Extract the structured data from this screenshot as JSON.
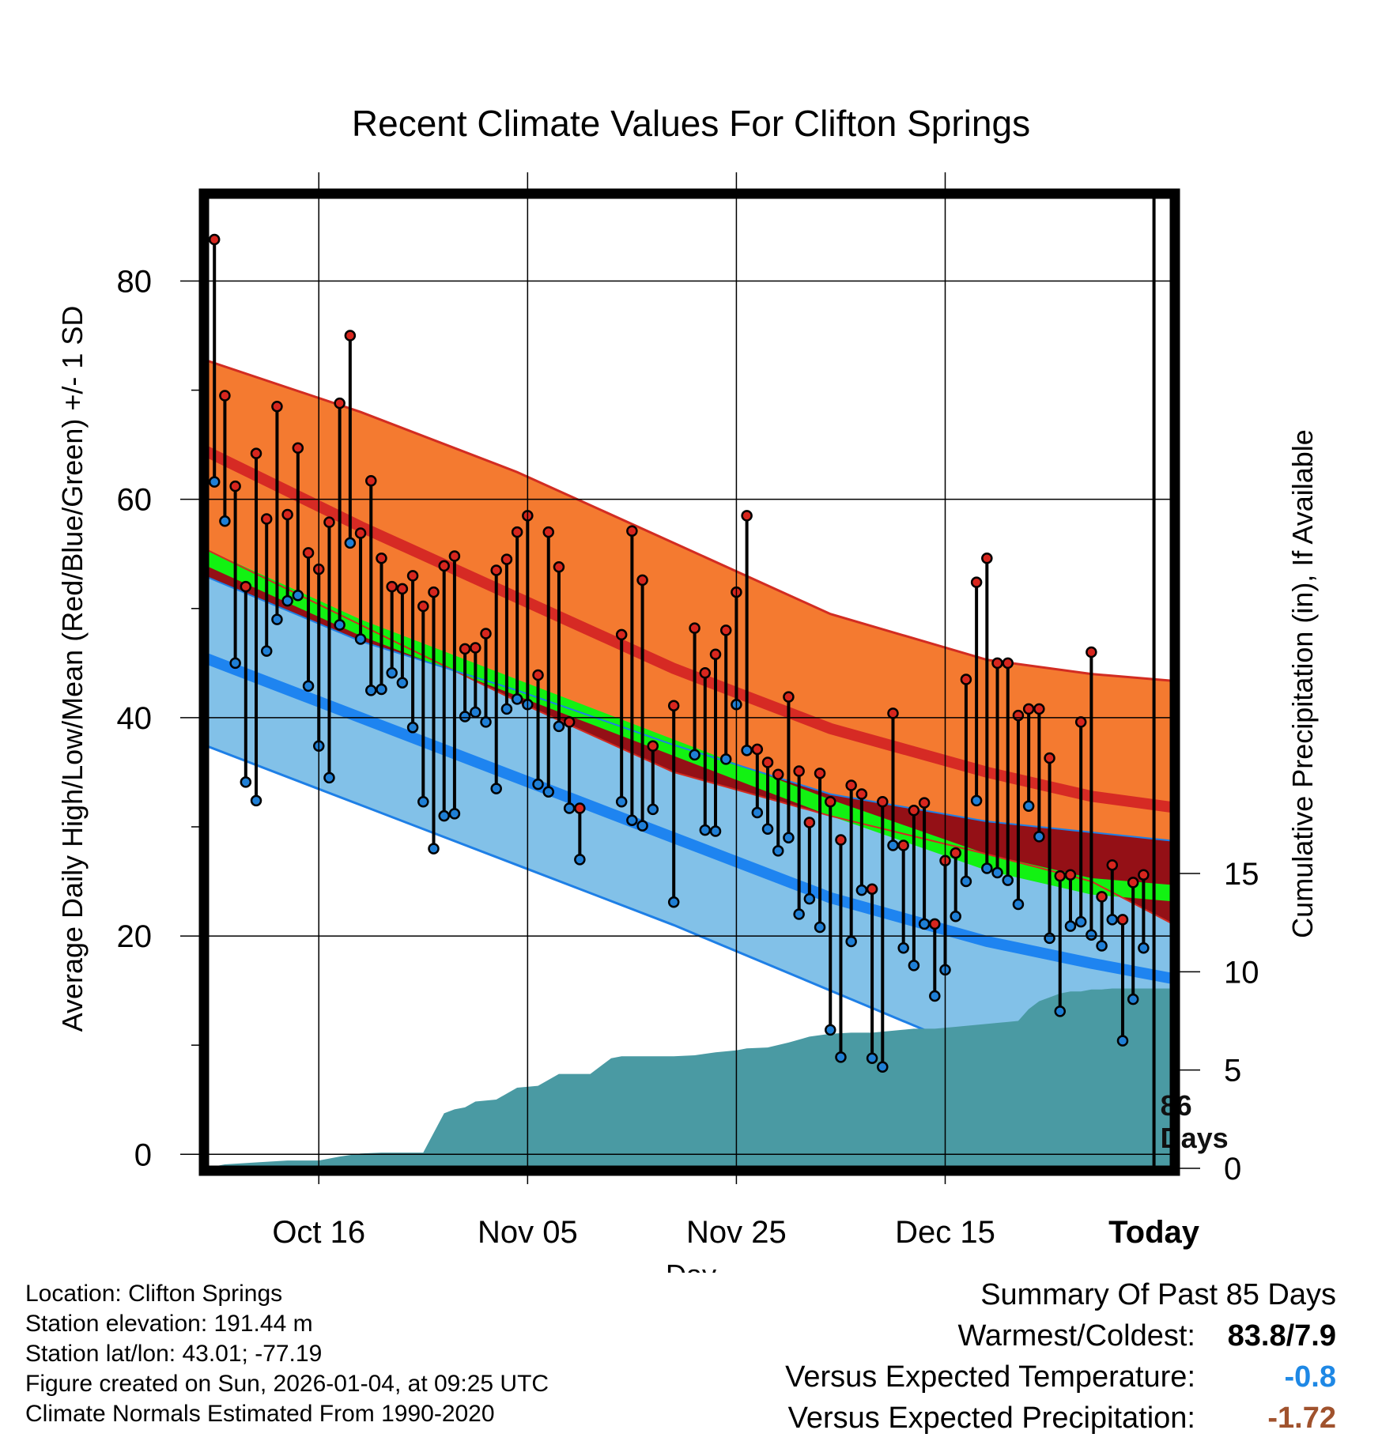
{
  "chart_data": {
    "type": "line",
    "title": "Recent Climate Values For Clifton Springs",
    "xlabel": "Day",
    "ylabel": "Average Daily High/Low/Mean (Red/Blue/Green) +/- 1 SD",
    "y2label": "Cumulative Precipitation (in), If Available",
    "x_range_days": [
      -85,
      8
    ],
    "ylim": [
      -1.5,
      88
    ],
    "yticks": [
      0,
      20,
      40,
      60,
      80
    ],
    "y2lim": [
      0,
      15
    ],
    "y2ticks": [
      0,
      5,
      10,
      15
    ],
    "xticks": [
      {
        "day": -74,
        "label": "Oct 16"
      },
      {
        "day": -54,
        "label": "Nov 05"
      },
      {
        "day": -34,
        "label": "Nov 25"
      },
      {
        "day": -14,
        "label": "Dec 15"
      },
      {
        "day": 6,
        "label": "Today"
      }
    ],
    "today_marker": {
      "day": 6,
      "label_line1": "86",
      "label_line2": "Days"
    },
    "normals": {
      "days": [
        -85,
        -70,
        -55,
        -40,
        -25,
        -10,
        0,
        10
      ],
      "high_upper": [
        72.8,
        68.0,
        62.5,
        56.0,
        49.5,
        45.3,
        44.0,
        43.2
      ],
      "high_mean": [
        64.5,
        57.5,
        51.0,
        44.5,
        39.0,
        35.0,
        32.8,
        31.5
      ],
      "high_lower": [
        55.5,
        48.5,
        41.5,
        35.0,
        31.0,
        27.5,
        25.0,
        20.0
      ],
      "mean_upper": [
        55.5,
        49.0,
        43.5,
        38.0,
        32.5,
        27.5,
        25.3,
        24.5
      ],
      "mean_lower": [
        54.0,
        47.5,
        42.0,
        36.5,
        31.0,
        26.0,
        23.8,
        23.0
      ],
      "low_upper": [
        53.0,
        47.0,
        42.5,
        37.5,
        33.0,
        30.5,
        29.5,
        28.5
      ],
      "low_mean": [
        45.5,
        40.0,
        34.5,
        29.0,
        23.5,
        19.5,
        17.5,
        15.7
      ],
      "low_lower": [
        37.5,
        32.0,
        26.5,
        21.0,
        15.0,
        9.0,
        5.0,
        0.0
      ]
    },
    "series": [
      {
        "name": "Daily High",
        "color": "#d7261e",
        "values": [
          83.8,
          69.5,
          61.2,
          52.0,
          64.2,
          58.2,
          68.5,
          58.6,
          64.7,
          55.1,
          53.6,
          57.9,
          68.8,
          75.0,
          56.9,
          61.7,
          54.6,
          52.0,
          51.8,
          53.0,
          50.2,
          51.5,
          53.9,
          54.8,
          46.3,
          46.4,
          47.7,
          53.5,
          54.5,
          57.0,
          58.5,
          43.9,
          57.0,
          53.8,
          39.6,
          31.7,
          null,
          null,
          null,
          47.6,
          57.1,
          52.6,
          37.4,
          null,
          41.1,
          null,
          48.2,
          44.1,
          45.8,
          48.0,
          51.5,
          58.5,
          37.1,
          35.9,
          34.8,
          41.9,
          35.1,
          30.4,
          34.9,
          32.3,
          28.8,
          33.8,
          33.0,
          24.3,
          32.3,
          40.4,
          28.3,
          31.5,
          32.2,
          21.1,
          26.9,
          27.6,
          43.5,
          52.4,
          54.6,
          45.0,
          45.0,
          40.2,
          40.8,
          40.8,
          36.3,
          25.5,
          25.6,
          39.6,
          46.0,
          23.6,
          26.5,
          21.5,
          24.9,
          25.6
        ]
      },
      {
        "name": "Daily Low",
        "color": "#1f7fd6",
        "values": [
          61.6,
          58.0,
          45.0,
          34.1,
          32.4,
          46.1,
          49.0,
          50.7,
          51.2,
          42.9,
          37.4,
          34.5,
          48.5,
          56.0,
          47.2,
          42.5,
          42.6,
          44.1,
          43.2,
          39.1,
          32.3,
          28.0,
          31.0,
          31.2,
          40.1,
          40.5,
          39.6,
          33.5,
          40.8,
          41.7,
          41.2,
          33.9,
          33.2,
          39.2,
          31.7,
          27.0,
          null,
          null,
          null,
          32.3,
          30.6,
          30.1,
          31.6,
          null,
          23.1,
          null,
          36.6,
          29.7,
          29.6,
          36.2,
          41.2,
          37.0,
          31.3,
          29.8,
          27.8,
          29.0,
          22.0,
          23.4,
          20.8,
          11.4,
          8.9,
          19.5,
          24.2,
          8.8,
          8.0,
          28.3,
          18.9,
          17.3,
          21.1,
          14.5,
          16.9,
          21.8,
          25.0,
          32.4,
          26.2,
          25.8,
          25.1,
          22.9,
          31.9,
          29.1,
          19.8,
          13.1,
          20.9,
          21.3,
          20.1,
          19.1,
          21.5,
          10.4,
          14.2,
          18.9
        ]
      }
    ],
    "precip_cumulative": {
      "days": [
        -84,
        -83,
        -80,
        -77,
        -74,
        -72,
        -70,
        -68,
        -64,
        -62,
        -61,
        -60,
        -59,
        -57,
        -56,
        -55,
        -53,
        -51,
        -50,
        -48,
        -46,
        -45,
        -43,
        -40,
        -38,
        -36,
        -34,
        -33,
        -31,
        -29,
        -27,
        -25,
        -23,
        -21,
        -19,
        -17,
        -15,
        -13,
        -11,
        -9,
        -7,
        -6,
        -5,
        -4,
        -3,
        -2,
        -1,
        0,
        1,
        2,
        3,
        4,
        5,
        6,
        7,
        8
      ],
      "values": [
        0.1,
        0.2,
        0.3,
        0.4,
        0.4,
        0.6,
        0.75,
        0.8,
        0.8,
        2.8,
        3.0,
        3.1,
        3.4,
        3.5,
        3.8,
        4.1,
        4.2,
        4.8,
        4.8,
        4.8,
        5.6,
        5.7,
        5.7,
        5.7,
        5.75,
        5.9,
        6.0,
        6.1,
        6.15,
        6.4,
        6.7,
        6.85,
        6.9,
        6.9,
        7.0,
        7.1,
        7.1,
        7.2,
        7.3,
        7.4,
        7.5,
        8.1,
        8.5,
        8.7,
        8.9,
        9.0,
        9.0,
        9.1,
        9.1,
        9.15,
        9.15,
        9.15,
        9.15,
        9.15,
        9.15,
        9.15
      ]
    }
  },
  "info": {
    "location": "Location: Clifton Springs",
    "elevation": "Station elevation: 191.44 m",
    "latlon": "Station lat/lon: 43.01; -77.19",
    "created": "Figure created on Sun, 2026-01-04, at 09:25 UTC",
    "normals": "Climate Normals Estimated From 1990-2020"
  },
  "summary": {
    "title": "Summary Of Past 85 Days",
    "warmest_label": "Warmest/Coldest:",
    "warmest_value": "83.8/7.9",
    "temp_label": "Versus Expected Temperature:",
    "temp_value": "-0.8",
    "temp_color": "#1e88e5",
    "precip_label": "Versus Expected Precipitation:",
    "precip_value": "-1.72",
    "precip_color": "#a0522d"
  },
  "colors": {
    "high_band": "#f47a30",
    "high_edge": "#d22c22",
    "high_mean": "#d62a24",
    "dark_band": "#941016",
    "mean_band": "#12f212",
    "low_band": "#82c1e8",
    "low_edge": "#1e7fe6",
    "low_mean": "#1e84f0",
    "precip": "#4a9aa3"
  }
}
